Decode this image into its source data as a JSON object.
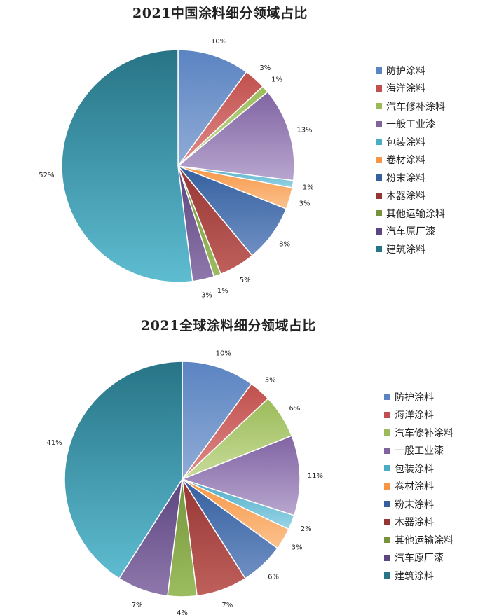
{
  "chart_data": [
    {
      "type": "pie",
      "title": "2021中国涂料细分领域占比",
      "categories": [
        "防护涂料",
        "海洋涂料",
        "汽车修补涂料",
        "一般工业漆",
        "包装涂料",
        "卷材涂料",
        "粉末涂料",
        "木器涂料",
        "其他运输涂料",
        "汽车原厂漆",
        "建筑涂料"
      ],
      "values": [
        10,
        3,
        1,
        13,
        1,
        3,
        8,
        5,
        1,
        3,
        52
      ],
      "labels": [
        "10%",
        "3%",
        "1%",
        "13%",
        "1%",
        "3%",
        "8%",
        "5%",
        "1%",
        "3%",
        "52%"
      ],
      "legend": "right"
    },
    {
      "type": "pie",
      "title": "2021全球涂料细分领域占比",
      "categories": [
        "防护涂料",
        "海洋涂料",
        "汽车修补涂料",
        "一般工业漆",
        "包装涂料",
        "卷材涂料",
        "粉末涂料",
        "木器涂料",
        "其他运输涂料",
        "汽车原厂漆",
        "建筑涂料"
      ],
      "values": [
        10,
        3,
        6,
        11,
        2,
        3,
        6,
        7,
        4,
        7,
        41
      ],
      "labels": [
        "10%",
        "3%",
        "6%",
        "11%",
        "2%",
        "3%",
        "6%",
        "7%",
        "4%",
        "7%",
        "41%"
      ],
      "legend": "right"
    }
  ],
  "colors": [
    [
      "#90acd6",
      "#5b84c2"
    ],
    [
      "#e08b89",
      "#c0504d"
    ],
    [
      "#c8dc9a",
      "#9bbb59"
    ],
    [
      "#b8a6cf",
      "#8064a2"
    ],
    [
      "#9bd4e6",
      "#4bacc6"
    ],
    [
      "#fbc28e",
      "#f79646"
    ],
    [
      "#6f8fc4",
      "#34609e"
    ],
    [
      "#c0605c",
      "#963634"
    ],
    [
      "#9cbd5f",
      "#76933c"
    ],
    [
      "#8e78ab",
      "#5c4580"
    ],
    [
      "#5ebcd1",
      "#277486"
    ]
  ]
}
